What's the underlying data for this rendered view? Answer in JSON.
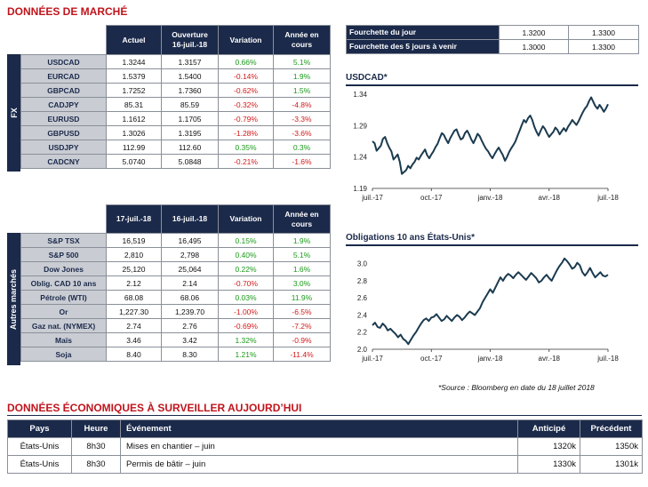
{
  "market_title": "DONNÉES DE MARCHÉ",
  "fx": {
    "side_label": "FX",
    "headers": [
      "Actuel",
      "Ouverture\n16-juil.-18",
      "Variation",
      "Année en\ncours"
    ],
    "rows": [
      {
        "label": "USDCAD",
        "actuel": "1.3244",
        "ouverture": "1.3157",
        "variation": "0.66%",
        "annee": "5.1%",
        "var_sign": "pos",
        "ann_sign": "pos"
      },
      {
        "label": "EURCAD",
        "actuel": "1.5379",
        "ouverture": "1.5400",
        "variation": "-0.14%",
        "annee": "1.9%",
        "var_sign": "neg",
        "ann_sign": "pos"
      },
      {
        "label": "GBPCAD",
        "actuel": "1.7252",
        "ouverture": "1.7360",
        "variation": "-0.62%",
        "annee": "1.5%",
        "var_sign": "neg",
        "ann_sign": "pos"
      },
      {
        "label": "CADJPY",
        "actuel": "85.31",
        "ouverture": "85.59",
        "variation": "-0.32%",
        "annee": "-4.8%",
        "var_sign": "neg",
        "ann_sign": "neg"
      },
      {
        "label": "EURUSD",
        "actuel": "1.1612",
        "ouverture": "1.1705",
        "variation": "-0.79%",
        "annee": "-3.3%",
        "var_sign": "neg",
        "ann_sign": "neg"
      },
      {
        "label": "GBPUSD",
        "actuel": "1.3026",
        "ouverture": "1.3195",
        "variation": "-1.28%",
        "annee": "-3.6%",
        "var_sign": "neg",
        "ann_sign": "neg"
      },
      {
        "label": "USDJPY",
        "actuel": "112.99",
        "ouverture": "112.60",
        "variation": "0.35%",
        "annee": "0.3%",
        "var_sign": "pos",
        "ann_sign": "pos"
      },
      {
        "label": "CADCNY",
        "actuel": "5.0740",
        "ouverture": "5.0848",
        "variation": "-0.21%",
        "annee": "-1.6%",
        "var_sign": "neg",
        "ann_sign": "neg"
      }
    ]
  },
  "range": {
    "rows": [
      {
        "label": "Fourchette du jour",
        "low": "1.3200",
        "high": "1.3300"
      },
      {
        "label": "Fourchette des 5 jours à venir",
        "low": "1.3000",
        "high": "1.3300"
      }
    ]
  },
  "other": {
    "side_label": "Autres marchés",
    "headers": [
      "17-juil.-18",
      "16-juil.-18",
      "Variation",
      "Année en\ncours"
    ],
    "rows": [
      {
        "label": "S&P TSX",
        "actuel": "16,519",
        "ouverture": "16,495",
        "variation": "0.15%",
        "annee": "1.9%",
        "var_sign": "pos",
        "ann_sign": "pos"
      },
      {
        "label": "S&P 500",
        "actuel": "2,810",
        "ouverture": "2,798",
        "variation": "0.40%",
        "annee": "5.1%",
        "var_sign": "pos",
        "ann_sign": "pos"
      },
      {
        "label": "Dow Jones",
        "actuel": "25,120",
        "ouverture": "25,064",
        "variation": "0.22%",
        "annee": "1.6%",
        "var_sign": "pos",
        "ann_sign": "pos"
      },
      {
        "label": "Oblig. CAD 10 ans",
        "actuel": "2.12",
        "ouverture": "2.14",
        "variation": "-0.70%",
        "annee": "3.0%",
        "var_sign": "neg",
        "ann_sign": "pos"
      },
      {
        "label": "Pétrole (WTI)",
        "actuel": "68.08",
        "ouverture": "68.06",
        "variation": "0.03%",
        "annee": "11.9%",
        "var_sign": "pos",
        "ann_sign": "pos"
      },
      {
        "label": "Or",
        "actuel": "1,227.30",
        "ouverture": "1,239.70",
        "variation": "-1.00%",
        "annee": "-6.5%",
        "var_sign": "neg",
        "ann_sign": "neg"
      },
      {
        "label": "Gaz nat. (NYMEX)",
        "actuel": "2.74",
        "ouverture": "2.76",
        "variation": "-0.69%",
        "annee": "-7.2%",
        "var_sign": "neg",
        "ann_sign": "neg"
      },
      {
        "label": "Maïs",
        "actuel": "3.46",
        "ouverture": "3.42",
        "variation": "1.32%",
        "annee": "-0.9%",
        "var_sign": "pos",
        "ann_sign": "neg"
      },
      {
        "label": "Soja",
        "actuel": "8.40",
        "ouverture": "8.30",
        "variation": "1.21%",
        "annee": "-11.4%",
        "var_sign": "pos",
        "ann_sign": "neg"
      }
    ]
  },
  "chart_data": [
    {
      "type": "line",
      "title": "USDCAD*",
      "x_ticks": [
        "juil.-17",
        "oct.-17",
        "janv.-18",
        "avr.-18",
        "juil.-18"
      ],
      "ylim": [
        1.19,
        1.34
      ],
      "y_ticks": [
        "1.34",
        "1.29",
        "1.24",
        "1.19"
      ],
      "line_color": "#1b3a4f",
      "values": [
        1.265,
        1.262,
        1.25,
        1.254,
        1.258,
        1.269,
        1.272,
        1.262,
        1.255,
        1.249,
        1.236,
        1.24,
        1.244,
        1.232,
        1.213,
        1.216,
        1.219,
        1.226,
        1.222,
        1.228,
        1.232,
        1.239,
        1.236,
        1.242,
        1.247,
        1.252,
        1.243,
        1.238,
        1.244,
        1.249,
        1.256,
        1.261,
        1.27,
        1.278,
        1.275,
        1.268,
        1.262,
        1.27,
        1.276,
        1.282,
        1.284,
        1.275,
        1.268,
        1.27,
        1.278,
        1.282,
        1.276,
        1.268,
        1.262,
        1.269,
        1.277,
        1.273,
        1.266,
        1.259,
        1.253,
        1.249,
        1.243,
        1.238,
        1.244,
        1.25,
        1.255,
        1.249,
        1.243,
        1.234,
        1.24,
        1.248,
        1.254,
        1.259,
        1.265,
        1.274,
        1.282,
        1.291,
        1.299,
        1.295,
        1.302,
        1.306,
        1.299,
        1.288,
        1.28,
        1.274,
        1.282,
        1.289,
        1.285,
        1.278,
        1.272,
        1.276,
        1.28,
        1.287,
        1.283,
        1.276,
        1.281,
        1.286,
        1.281,
        1.288,
        1.293,
        1.299,
        1.295,
        1.291,
        1.297,
        1.304,
        1.311,
        1.317,
        1.321,
        1.329,
        1.335,
        1.328,
        1.321,
        1.317,
        1.323,
        1.318,
        1.312,
        1.317,
        1.324
      ]
    },
    {
      "type": "line",
      "title": "Obligations 10 ans États-Unis*",
      "x_ticks": [
        "juil.-17",
        "oct.-17",
        "janv.-18",
        "avr.-18",
        "juil.-18"
      ],
      "ylim": [
        2.0,
        3.1
      ],
      "y_ticks": [
        "3.0",
        "2.8",
        "2.6",
        "2.4",
        "2.2",
        "2.0"
      ],
      "line_color": "#1b3a4f",
      "values": [
        2.28,
        2.31,
        2.26,
        2.25,
        2.3,
        2.27,
        2.22,
        2.24,
        2.21,
        2.18,
        2.14,
        2.17,
        2.12,
        2.1,
        2.06,
        2.11,
        2.16,
        2.2,
        2.25,
        2.3,
        2.34,
        2.36,
        2.33,
        2.37,
        2.38,
        2.41,
        2.37,
        2.33,
        2.35,
        2.39,
        2.36,
        2.33,
        2.37,
        2.4,
        2.38,
        2.34,
        2.37,
        2.41,
        2.44,
        2.42,
        2.4,
        2.44,
        2.48,
        2.55,
        2.6,
        2.65,
        2.7,
        2.66,
        2.72,
        2.78,
        2.84,
        2.8,
        2.85,
        2.88,
        2.86,
        2.83,
        2.87,
        2.9,
        2.87,
        2.84,
        2.81,
        2.85,
        2.89,
        2.86,
        2.83,
        2.78,
        2.8,
        2.84,
        2.87,
        2.83,
        2.8,
        2.86,
        2.92,
        2.97,
        3.01,
        3.06,
        3.03,
        2.99,
        2.94,
        2.96,
        3.01,
        2.98,
        2.9,
        2.86,
        2.9,
        2.95,
        2.89,
        2.84,
        2.87,
        2.9,
        2.86,
        2.85,
        2.87
      ]
    }
  ],
  "source": "*Source : Bloomberg en date du  18 juillet 2018",
  "econ": {
    "title": "DONNÉES ÉCONOMIQUES À SURVEILLER AUJOURD’HUI",
    "headers": [
      "Pays",
      "Heure",
      "Événement",
      "Anticipé",
      "Précédent"
    ],
    "rows": [
      {
        "pays": "États-Unis",
        "heure": "8h30",
        "event": "Mises en chantier – juin",
        "anticipe": "1320k",
        "precedent": "1350k"
      },
      {
        "pays": "États-Unis",
        "heure": "8h30",
        "event": "Permis de bâtir – juin",
        "anticipe": "1330k",
        "precedent": "1301k"
      }
    ]
  }
}
